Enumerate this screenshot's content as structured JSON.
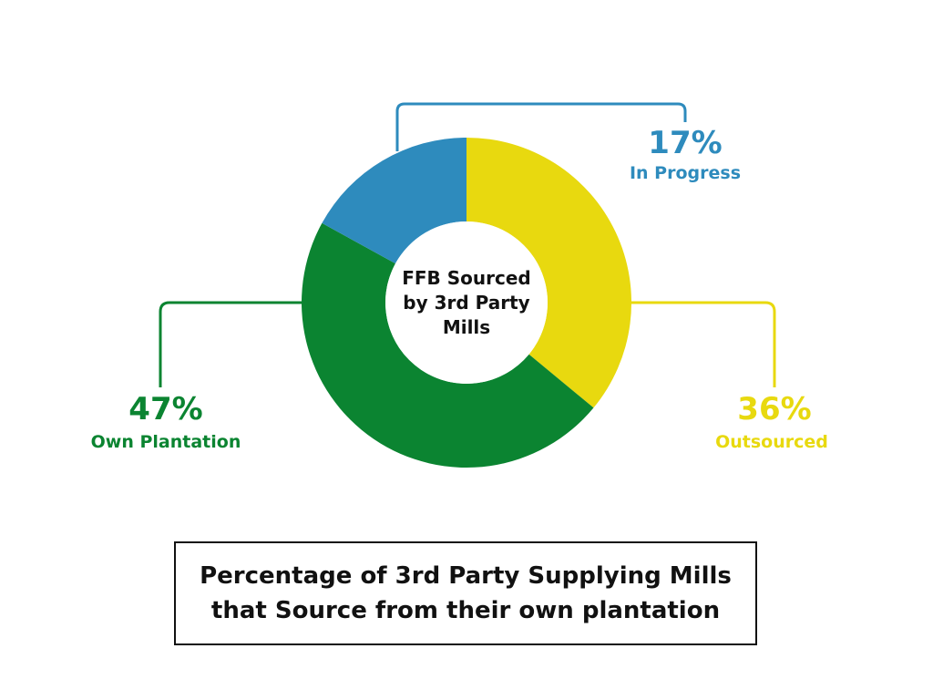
{
  "chart_data": {
    "type": "donut",
    "center_label": [
      "FFB Sourced",
      "by 3rd Party",
      "Mills"
    ],
    "series": [
      {
        "category": "Outsourced",
        "value": 36,
        "label": "36%",
        "color": "#e8d90f"
      },
      {
        "category": "Own Plantation",
        "value": 47,
        "label": "47%",
        "color": "#0b8431"
      },
      {
        "category": "In Progress",
        "value": 17,
        "label": "17%",
        "color": "#2e8bbd"
      }
    ]
  },
  "caption": {
    "line1": "Percentage of 3rd Party Supplying Mills",
    "line2": "that Source from their own plantation"
  }
}
